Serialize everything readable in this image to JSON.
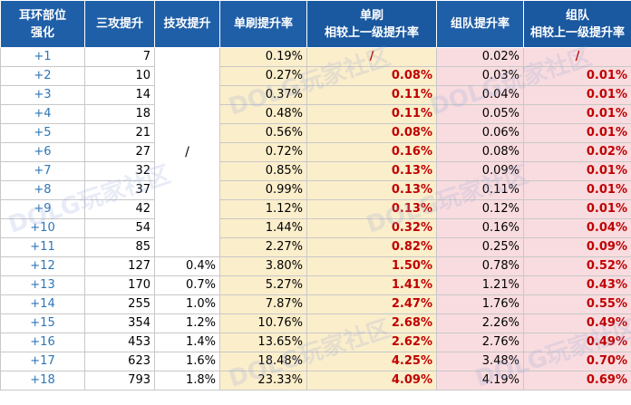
{
  "headers": {
    "col0": [
      "耳环部位",
      "强化"
    ],
    "col1": [
      "三攻提升"
    ],
    "col2": [
      "技攻提升"
    ],
    "col3": [
      "单刷提升率"
    ],
    "col4": [
      "单刷",
      "相较上一级提升率"
    ],
    "col5": [
      "组队提升率"
    ],
    "col6": [
      "组队",
      "相较上一级提升率"
    ]
  },
  "merged_skill_value": "/",
  "watermark": "DOLG玩家社区",
  "rows": [
    {
      "level": "+1",
      "attack": "7",
      "skill": "",
      "solo": "0.19%",
      "solo_up": "/",
      "team": "0.02%",
      "team_up": "/"
    },
    {
      "level": "+2",
      "attack": "10",
      "skill": "",
      "solo": "0.27%",
      "solo_up": "0.08%",
      "team": "0.03%",
      "team_up": "0.01%"
    },
    {
      "level": "+3",
      "attack": "14",
      "skill": "",
      "solo": "0.37%",
      "solo_up": "0.11%",
      "team": "0.04%",
      "team_up": "0.01%"
    },
    {
      "level": "+4",
      "attack": "18",
      "skill": "",
      "solo": "0.48%",
      "solo_up": "0.11%",
      "team": "0.05%",
      "team_up": "0.01%"
    },
    {
      "level": "+5",
      "attack": "21",
      "skill": "",
      "solo": "0.56%",
      "solo_up": "0.08%",
      "team": "0.06%",
      "team_up": "0.01%"
    },
    {
      "level": "+6",
      "attack": "27",
      "skill": "",
      "solo": "0.72%",
      "solo_up": "0.16%",
      "team": "0.08%",
      "team_up": "0.02%"
    },
    {
      "level": "+7",
      "attack": "32",
      "skill": "",
      "solo": "0.85%",
      "solo_up": "0.13%",
      "team": "0.09%",
      "team_up": "0.01%"
    },
    {
      "level": "+8",
      "attack": "37",
      "skill": "",
      "solo": "0.99%",
      "solo_up": "0.13%",
      "team": "0.11%",
      "team_up": "0.01%"
    },
    {
      "level": "+9",
      "attack": "42",
      "skill": "",
      "solo": "1.12%",
      "solo_up": "0.13%",
      "team": "0.12%",
      "team_up": "0.01%"
    },
    {
      "level": "+10",
      "attack": "54",
      "skill": "",
      "solo": "1.44%",
      "solo_up": "0.32%",
      "team": "0.16%",
      "team_up": "0.04%"
    },
    {
      "level": "+11",
      "attack": "85",
      "skill": "",
      "solo": "2.27%",
      "solo_up": "0.82%",
      "team": "0.25%",
      "team_up": "0.09%"
    },
    {
      "level": "+12",
      "attack": "127",
      "skill": "0.4%",
      "solo": "3.80%",
      "solo_up": "1.50%",
      "team": "0.78%",
      "team_up": "0.52%"
    },
    {
      "level": "+13",
      "attack": "170",
      "skill": "0.7%",
      "solo": "5.27%",
      "solo_up": "1.41%",
      "team": "1.21%",
      "team_up": "0.43%"
    },
    {
      "level": "+14",
      "attack": "255",
      "skill": "1.0%",
      "solo": "7.87%",
      "solo_up": "2.47%",
      "team": "1.76%",
      "team_up": "0.55%"
    },
    {
      "level": "+15",
      "attack": "354",
      "skill": "1.2%",
      "solo": "10.76%",
      "solo_up": "2.68%",
      "team": "2.26%",
      "team_up": "0.49%"
    },
    {
      "level": "+16",
      "attack": "453",
      "skill": "1.4%",
      "solo": "13.65%",
      "solo_up": "2.62%",
      "team": "2.76%",
      "team_up": "0.49%"
    },
    {
      "level": "+17",
      "attack": "623",
      "skill": "1.6%",
      "solo": "18.48%",
      "solo_up": "4.25%",
      "team": "3.48%",
      "team_up": "0.70%"
    },
    {
      "level": "+18",
      "attack": "793",
      "skill": "1.8%",
      "solo": "23.33%",
      "solo_up": "4.09%",
      "team": "4.19%",
      "team_up": "0.69%"
    }
  ]
}
